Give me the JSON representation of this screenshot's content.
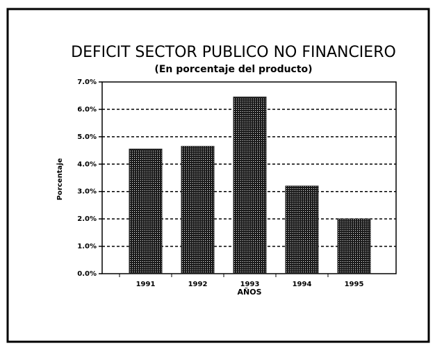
{
  "chart_data": {
    "type": "bar",
    "title": "DEFICIT SECTOR PUBLICO NO FINANCIERO",
    "subtitle": "(En porcentaje del producto)",
    "y_label": "Porcentaje",
    "x_label": "AÑOS",
    "categories": [
      "1991",
      "1992",
      "1993",
      "1994",
      "1995"
    ],
    "values": [
      4.55,
      4.65,
      6.45,
      3.2,
      2.0
    ],
    "color": "#222222",
    "ylim": [
      0,
      7
    ],
    "yticks": [
      {
        "value": 0,
        "label": "0.0%"
      },
      {
        "value": 1,
        "label": "1.0%"
      },
      {
        "value": 2,
        "label": "2.0%"
      },
      {
        "value": 3,
        "label": "3.0%"
      },
      {
        "value": 4,
        "label": "4.0%"
      },
      {
        "value": 5,
        "label": "5.0%"
      },
      {
        "value": 6,
        "label": "6.0%"
      },
      {
        "value": 7,
        "label": "7.0%"
      }
    ],
    "grid": true
  }
}
